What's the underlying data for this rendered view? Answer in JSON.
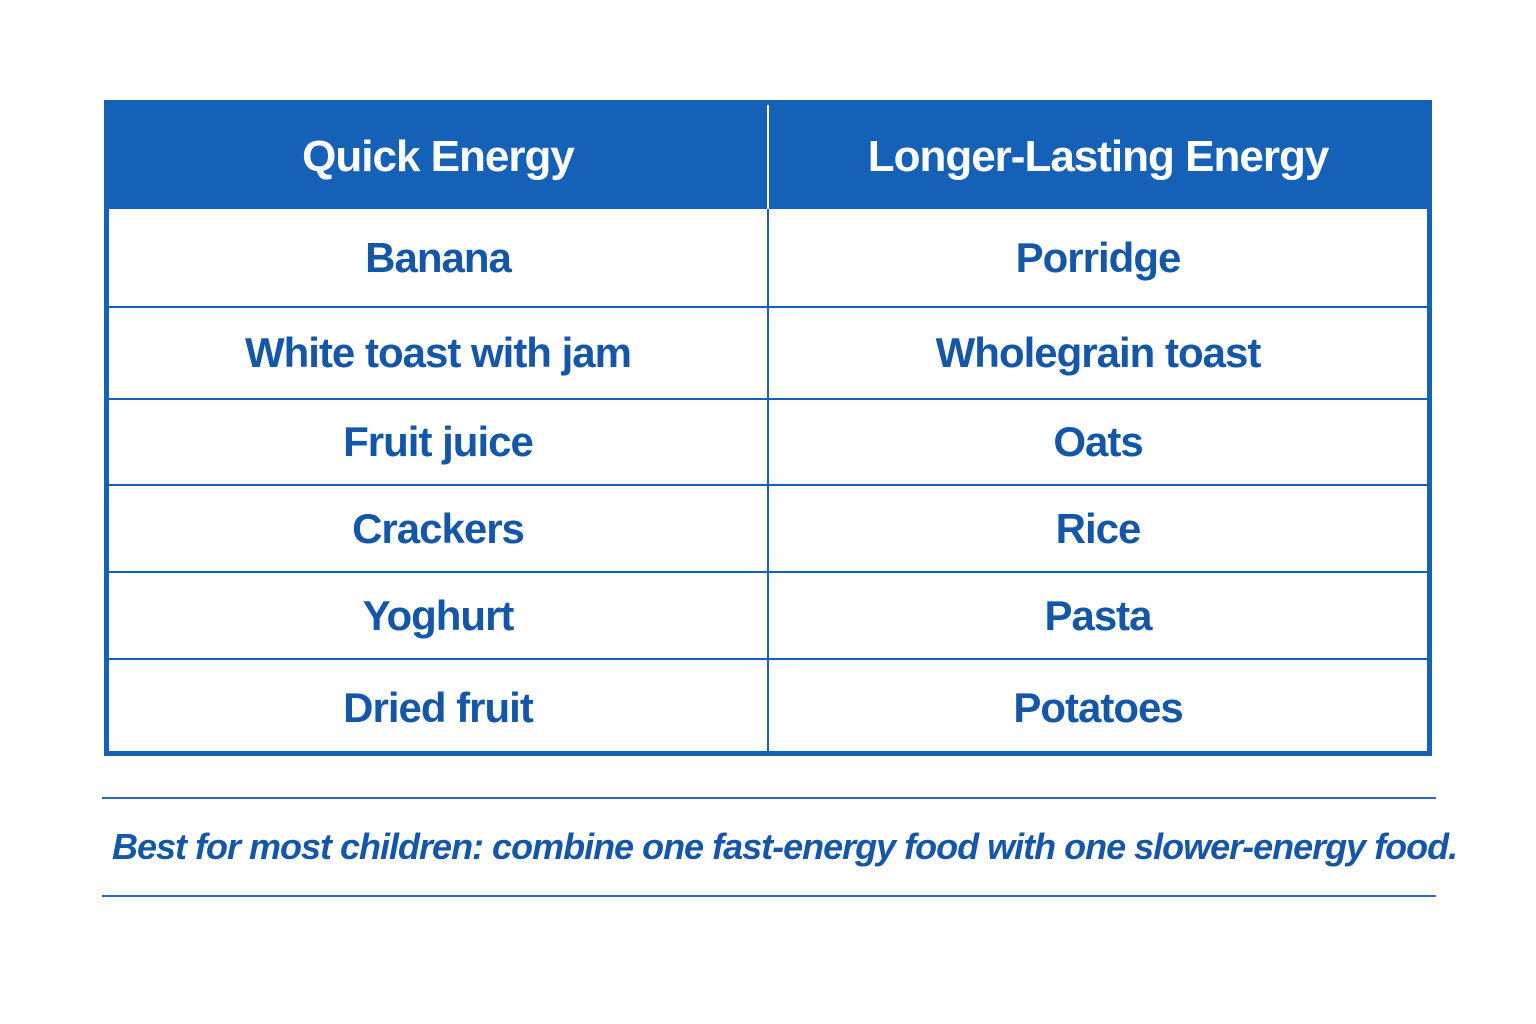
{
  "table": {
    "headers": [
      "Quick Energy",
      "Longer-Lasting Energy"
    ],
    "rows": [
      [
        "Banana",
        "Porridge"
      ],
      [
        "White toast with jam",
        "Wholegrain toast"
      ],
      [
        "Fruit juice",
        "Oats"
      ],
      [
        "Crackers",
        "Rice"
      ],
      [
        "Yoghurt",
        "Pasta"
      ],
      [
        "Dried fruit",
        "Potatoes"
      ]
    ]
  },
  "footnote": "Best for most children: combine one fast-energy food with one slower-energy food.",
  "colors": {
    "primary_blue": "#1661b8",
    "text_blue": "#1457a8",
    "background": "#ffffff"
  }
}
